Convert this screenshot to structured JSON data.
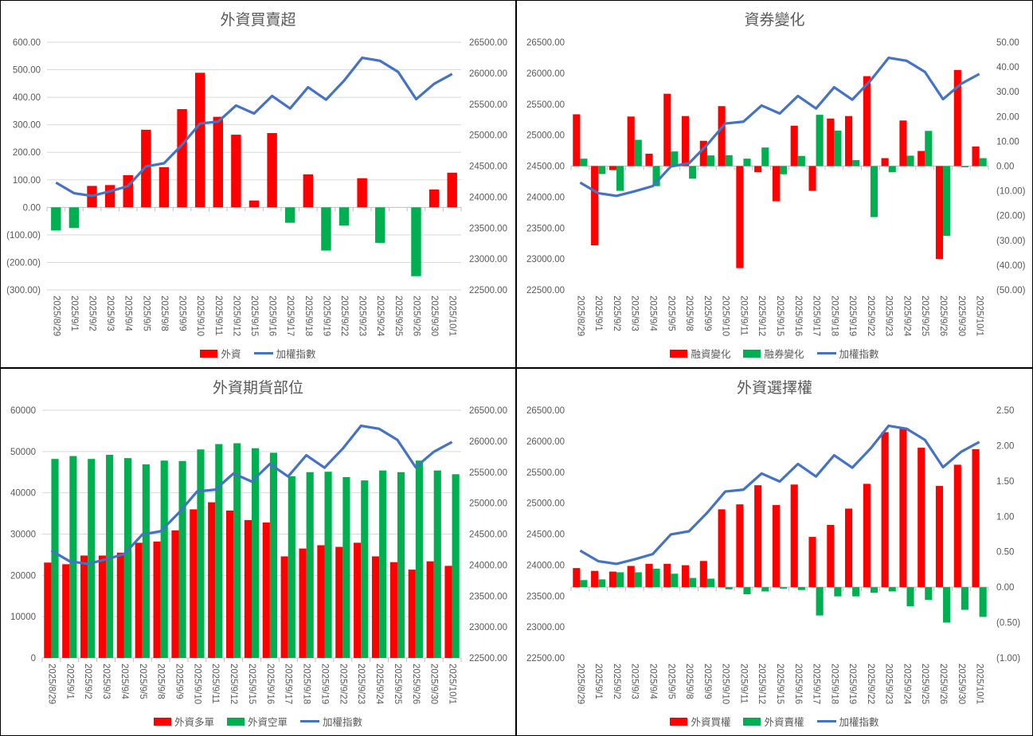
{
  "chart_data": [
    {
      "type": "bar+line",
      "title": "外資買賣超",
      "categories": [
        "2025/8/29",
        "2025/9/1",
        "2025/9/2",
        "2025/9/3",
        "2025/9/4",
        "2025/9/5",
        "2025/9/8",
        "2025/9/9",
        "2025/9/10",
        "2025/9/11",
        "2025/9/12",
        "2025/9/15",
        "2025/9/16",
        "2025/9/17",
        "2025/9/18",
        "2025/9/19",
        "2025/9/22",
        "2025/9/23",
        "2025/9/24",
        "2025/9/25",
        "2025/9/26",
        "2025/9/30",
        "2025/10/1"
      ],
      "gridlines": true,
      "left_axis": {
        "min": -300,
        "max": 600,
        "ticks": [
          600,
          500,
          400,
          300,
          200,
          100,
          0,
          -100,
          -200,
          -300
        ],
        "tick_labels": [
          "600.00",
          "500.00",
          "400.00",
          "300.00",
          "200.00",
          "100.00",
          "0.00",
          "(100.00)",
          "(200.00)",
          "(300.00)"
        ]
      },
      "right_axis": {
        "min": 22500,
        "max": 26500,
        "ticks": [
          26500,
          26000,
          25500,
          25000,
          24500,
          24000,
          23500,
          23000,
          22500
        ],
        "tick_labels": [
          "26500.00",
          "26000.00",
          "25500.00",
          "25000.00",
          "24500.00",
          "24000.00",
          "23500.00",
          "23000.00",
          "22500.00"
        ]
      },
      "series": [
        {
          "name": "外資",
          "kind": "bar",
          "axis": "left",
          "color": "#FF0000",
          "neg_color": "#00B050",
          "values": [
            -84,
            -75,
            78,
            81,
            117,
            282,
            146,
            357,
            489,
            329,
            264,
            25,
            270,
            -56,
            120,
            -157,
            -66,
            106,
            -129,
            0,
            -250,
            65,
            126
          ]
        },
        {
          "name": "加權指數",
          "kind": "line",
          "axis": "right",
          "color": "#4472C4",
          "values": [
            24233,
            24062,
            24019,
            24092,
            24177,
            24494,
            24545,
            24844,
            25187,
            25217,
            25478,
            25349,
            25632,
            25430,
            25773,
            25572,
            25880,
            26248,
            26200,
            26021,
            25580,
            25829,
            25987
          ]
        }
      ],
      "legend": [
        {
          "name": "外資",
          "kind": "bar",
          "color": "#FF0000"
        },
        {
          "name": "加權指數",
          "kind": "line",
          "color": "#4472C4"
        }
      ]
    },
    {
      "type": "bar+line",
      "title": "資券變化",
      "categories": [
        "2025/8/29",
        "2025/9/1",
        "2025/9/2",
        "2025/9/3",
        "2025/9/4",
        "2025/9/5",
        "2025/9/8",
        "2025/9/9",
        "2025/9/10",
        "2025/9/11",
        "2025/9/12",
        "2025/9/15",
        "2025/9/16",
        "2025/9/17",
        "2025/9/18",
        "2025/9/19",
        "2025/9/22",
        "2025/9/23",
        "2025/9/24",
        "2025/9/25",
        "2025/9/26",
        "2025/9/30",
        "2025/10/1"
      ],
      "gridlines": false,
      "left_axis": {
        "min": 22500,
        "max": 26500,
        "ticks": [
          26500,
          26000,
          25500,
          25000,
          24500,
          24000,
          23500,
          23000,
          22500
        ],
        "tick_labels": [
          "26500.00",
          "26000.00",
          "25500.00",
          "25000.00",
          "24500.00",
          "24000.00",
          "23500.00",
          "23000.00",
          "22500.00"
        ]
      },
      "right_axis": {
        "min": -50,
        "max": 50,
        "ticks": [
          50,
          40,
          30,
          20,
          10,
          0,
          -10,
          -20,
          -30,
          -40,
          -50
        ],
        "tick_labels": [
          "50.00",
          "40.00",
          "30.00",
          "20.00",
          "10.00",
          "0.00",
          "(10.00)",
          "(20.00)",
          "(30.00)",
          "(40.00)",
          "(50.00)"
        ]
      },
      "series": [
        {
          "name": "融資變化",
          "kind": "bar",
          "axis": "right",
          "color": "#FF0000",
          "values": [
            20.9,
            -32.0,
            -1.6,
            20.0,
            5.0,
            29.2,
            20.2,
            10.2,
            24.2,
            -41.2,
            -2.5,
            -14.2,
            16.3,
            -10.0,
            19.2,
            20.2,
            36.3,
            3.2,
            18.4,
            6.1,
            -37.5,
            38.8,
            7.9
          ]
        },
        {
          "name": "融券變化",
          "kind": "bar",
          "axis": "right",
          "color": "#00B050",
          "values": [
            3.0,
            -3.2,
            -10.0,
            10.6,
            -8.1,
            5.9,
            -5.1,
            4.3,
            4.4,
            3.0,
            7.5,
            -3.3,
            4.1,
            20.7,
            14.3,
            2.4,
            -20.6,
            -2.5,
            4.2,
            14.2,
            -28.2,
            -0.5,
            3.2
          ]
        },
        {
          "name": "加權指數",
          "kind": "line",
          "axis": "left",
          "color": "#4472C4",
          "values": [
            24233,
            24062,
            24019,
            24092,
            24177,
            24494,
            24545,
            24844,
            25187,
            25217,
            25478,
            25349,
            25632,
            25430,
            25773,
            25572,
            25880,
            26248,
            26200,
            26021,
            25580,
            25829,
            25987
          ]
        }
      ],
      "legend": [
        {
          "name": "融資變化",
          "kind": "bar",
          "color": "#FF0000"
        },
        {
          "name": "融券變化",
          "kind": "bar",
          "color": "#00B050"
        },
        {
          "name": "加權指數",
          "kind": "line",
          "color": "#4472C4"
        }
      ]
    },
    {
      "type": "bar+line",
      "title": "外資期貨部位",
      "categories": [
        "2025/8/29",
        "2025/9/1",
        "2025/9/2",
        "2025/9/3",
        "2025/9/4",
        "2025/9/5",
        "2025/9/8",
        "2025/9/9",
        "2025/9/10",
        "2025/9/11",
        "2025/9/12",
        "2025/9/15",
        "2025/9/16",
        "2025/9/17",
        "2025/9/18",
        "2025/9/19",
        "2025/9/22",
        "2025/9/23",
        "2025/9/24",
        "2025/9/25",
        "2025/9/26",
        "2025/9/30",
        "2025/10/1"
      ],
      "gridlines": true,
      "left_axis": {
        "min": 0,
        "max": 60000,
        "ticks": [
          60000,
          50000,
          40000,
          30000,
          20000,
          10000,
          0
        ],
        "tick_labels": [
          "60000",
          "50000",
          "40000",
          "30000",
          "20000",
          "10000",
          "0"
        ]
      },
      "right_axis": {
        "min": 22500,
        "max": 26500,
        "ticks": [
          26500,
          26000,
          25500,
          25000,
          24500,
          24000,
          23500,
          23000,
          22500
        ],
        "tick_labels": [
          "26500.00",
          "26000.00",
          "25500.00",
          "25000.00",
          "24500.00",
          "24000.00",
          "23500.00",
          "23000.00",
          "22500.00"
        ]
      },
      "series": [
        {
          "name": "外資多單",
          "kind": "bar",
          "axis": "left",
          "color": "#FF0000",
          "values": [
            23100,
            22700,
            24800,
            24800,
            25500,
            27900,
            28200,
            30900,
            36000,
            37700,
            35700,
            33400,
            32800,
            24600,
            26500,
            27300,
            26900,
            27900,
            24600,
            23200,
            21400,
            23400,
            22300
          ]
        },
        {
          "name": "外資空單",
          "kind": "bar",
          "axis": "left",
          "color": "#00B050",
          "values": [
            48200,
            48900,
            48200,
            49200,
            48400,
            46900,
            47800,
            47700,
            50500,
            51800,
            52000,
            50800,
            49700,
            44000,
            45000,
            45100,
            43800,
            43000,
            45400,
            45000,
            47800,
            45400,
            44500
          ]
        },
        {
          "name": "加權指數",
          "kind": "line",
          "axis": "right",
          "color": "#4472C4",
          "values": [
            24233,
            24062,
            24019,
            24092,
            24177,
            24494,
            24545,
            24844,
            25187,
            25217,
            25478,
            25349,
            25632,
            25430,
            25773,
            25572,
            25880,
            26248,
            26200,
            26021,
            25580,
            25829,
            25987
          ]
        }
      ],
      "legend": [
        {
          "name": "外資多單",
          "kind": "bar",
          "color": "#FF0000"
        },
        {
          "name": "外資空單",
          "kind": "bar",
          "color": "#00B050"
        },
        {
          "name": "加權指數",
          "kind": "line",
          "color": "#4472C4"
        }
      ]
    },
    {
      "type": "bar+line",
      "title": "外資選擇權",
      "categories": [
        "2025/8/29",
        "2025/9/1",
        "2025/9/2",
        "2025/9/3",
        "2025/9/4",
        "2025/9/5",
        "2025/9/8",
        "2025/9/9",
        "2025/9/10",
        "2025/9/11",
        "2025/9/12",
        "2025/9/15",
        "2025/9/16",
        "2025/9/17",
        "2025/9/18",
        "2025/9/19",
        "2025/9/22",
        "2025/9/23",
        "2025/9/24",
        "2025/9/25",
        "2025/9/26",
        "2025/9/30",
        "2025/10/1"
      ],
      "gridlines": false,
      "left_axis": {
        "min": 22500,
        "max": 26500,
        "ticks": [
          26500,
          26000,
          25500,
          25000,
          24500,
          24000,
          23500,
          23000,
          22500
        ],
        "tick_labels": [
          "26500.00",
          "26000.00",
          "25500.00",
          "25000.00",
          "24500.00",
          "24000.00",
          "23500.00",
          "23000.00",
          "22500.00"
        ]
      },
      "right_axis": {
        "min": -1,
        "max": 2.5,
        "ticks": [
          2.5,
          2,
          1.5,
          1,
          0.5,
          0,
          -0.5,
          -1
        ],
        "tick_labels": [
          "2.50",
          "2.00",
          "1.50",
          "1.00",
          "0.50",
          "0.00",
          "(0.50)",
          "(1.00)"
        ]
      },
      "series": [
        {
          "name": "外資買權",
          "kind": "bar",
          "axis": "right",
          "color": "#FF0000",
          "values": [
            0.27,
            0.23,
            0.22,
            0.3,
            0.33,
            0.33,
            0.31,
            0.37,
            1.1,
            1.17,
            1.44,
            1.16,
            1.45,
            0.71,
            0.88,
            1.11,
            1.46,
            2.19,
            2.24,
            1.97,
            1.43,
            1.73,
            1.95
          ]
        },
        {
          "name": "外資賣權",
          "kind": "bar",
          "axis": "right",
          "color": "#00B050",
          "values": [
            0.1,
            0.11,
            0.21,
            0.21,
            0.26,
            0.19,
            0.13,
            0.12,
            -0.03,
            -0.1,
            -0.06,
            -0.02,
            -0.04,
            -0.4,
            -0.13,
            -0.13,
            -0.08,
            -0.06,
            -0.27,
            -0.18,
            -0.5,
            -0.32,
            -0.42
          ]
        },
        {
          "name": "加權指數",
          "kind": "line",
          "axis": "left",
          "color": "#4472C4",
          "values": [
            24233,
            24062,
            24019,
            24092,
            24177,
            24494,
            24545,
            24844,
            25187,
            25217,
            25478,
            25349,
            25632,
            25430,
            25773,
            25572,
            25880,
            26248,
            26200,
            26021,
            25580,
            25829,
            25987
          ]
        }
      ],
      "legend": [
        {
          "name": "外資買權",
          "kind": "bar",
          "color": "#FF0000"
        },
        {
          "name": "外資賣權",
          "kind": "bar",
          "color": "#00B050"
        },
        {
          "name": "加權指數",
          "kind": "line",
          "color": "#4472C4"
        }
      ]
    }
  ]
}
